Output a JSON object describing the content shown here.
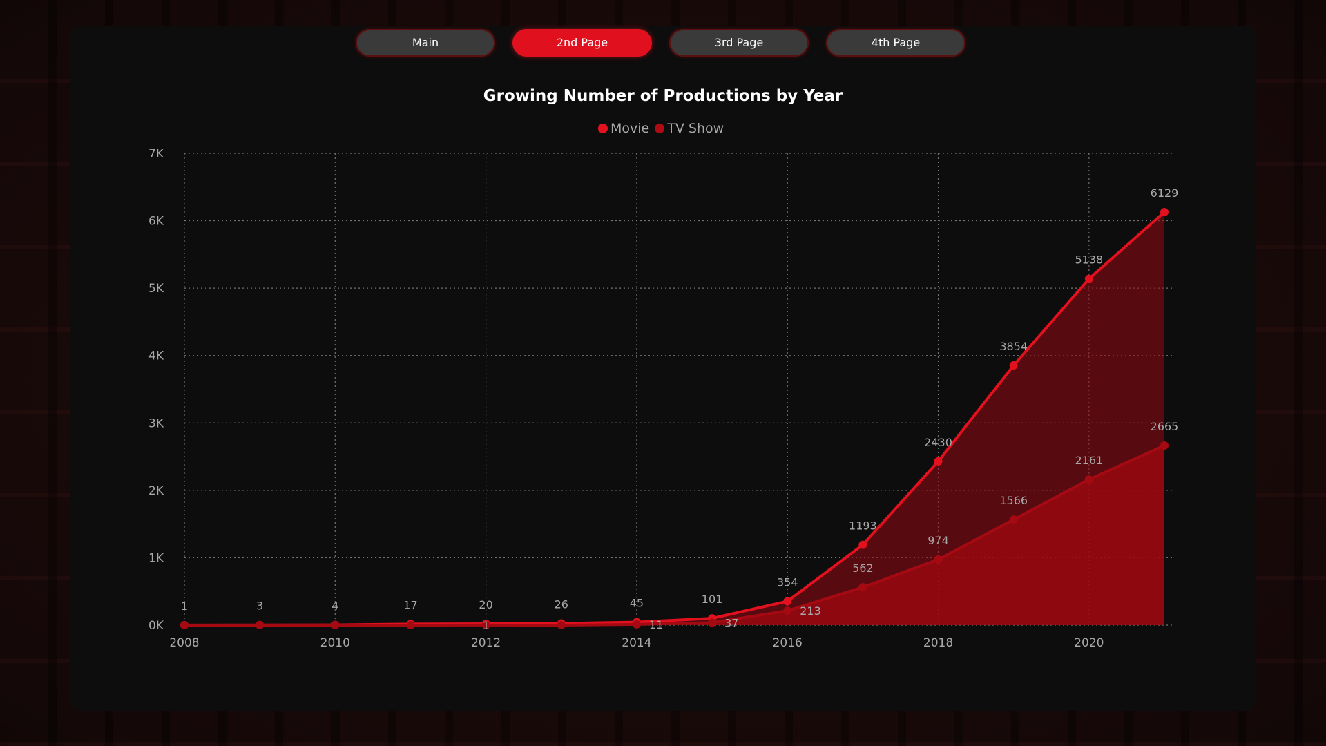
{
  "nav": {
    "tabs": [
      {
        "label": "Main",
        "active": false
      },
      {
        "label": "2nd Page",
        "active": true
      },
      {
        "label": "3rd Page",
        "active": false
      },
      {
        "label": "4th Page",
        "active": false
      }
    ]
  },
  "colors": {
    "accent": "#e0101e",
    "movie": "#e3101e",
    "tv_show": "#b00a14",
    "panel": "#0d0d0d",
    "text_muted": "#a8a8a8"
  },
  "chart_data": {
    "type": "area",
    "title": "Growing Number of Productions by Year",
    "xlabel": "",
    "ylabel": "",
    "x": [
      2008,
      2009,
      2010,
      2011,
      2012,
      2013,
      2014,
      2015,
      2016,
      2017,
      2018,
      2019,
      2020,
      2021
    ],
    "x_ticks": [
      "2008",
      "2010",
      "2012",
      "2014",
      "2016",
      "2018",
      "2020"
    ],
    "y_ticks": [
      "0K",
      "1K",
      "2K",
      "3K",
      "4K",
      "5K",
      "6K",
      "7K"
    ],
    "ylim": [
      0,
      7000
    ],
    "grid": true,
    "legend_position": "top-center",
    "series": [
      {
        "name": "Movie",
        "values": [
          1,
          3,
          4,
          17,
          20,
          26,
          45,
          101,
          354,
          1193,
          2430,
          3854,
          5138,
          6129
        ],
        "labels": [
          "1",
          "3",
          "4",
          "17",
          "20",
          "26",
          "45",
          "101",
          "354",
          "1193",
          "2430",
          "3854",
          "5138",
          "6129"
        ]
      },
      {
        "name": "TV Show",
        "values": [
          0,
          0,
          0,
          0,
          1,
          0,
          11,
          37,
          213,
          562,
          974,
          1566,
          2161,
          2665
        ],
        "labels": [
          "",
          "",
          "",
          "",
          "1",
          "",
          "11",
          "37",
          "213",
          "562",
          "974",
          "1566",
          "2161",
          "2665"
        ]
      }
    ]
  }
}
